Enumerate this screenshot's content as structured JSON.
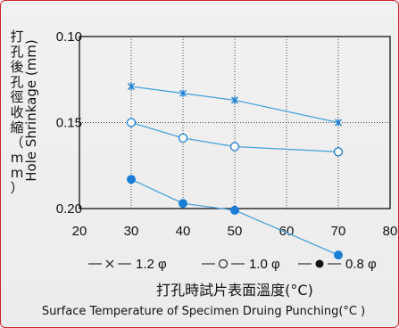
{
  "chart_data": {
    "type": "line",
    "xlabel_cn": "打孔時試片表面溫度(°C)",
    "xlabel_en": "Surface Temperature of Specimen Druing Punching(°C )",
    "ylabel_cn": "打孔後孔徑收縮（mm）",
    "ylabel_en": "Hole Shrinkage (mm)",
    "xlim": [
      20,
      80
    ],
    "ylim": [
      0.1,
      0.2
    ],
    "y_inverted": true,
    "x_ticks": [
      "20",
      "30",
      "40",
      "50",
      "60",
      "70",
      "80"
    ],
    "y_ticks": [
      "0.10",
      "0.15",
      "0.20"
    ],
    "grid": true,
    "x": [
      30,
      40,
      50,
      70
    ],
    "series": [
      {
        "name": "1.2 φ",
        "marker": "x",
        "values": [
          0.129,
          0.133,
          0.137,
          0.15
        ]
      },
      {
        "name": "1.0 φ",
        "marker": "open-circle",
        "values": [
          0.15,
          0.159,
          0.164,
          0.167
        ]
      },
      {
        "name": "0.8 φ",
        "marker": "filled-circle",
        "values": [
          0.183,
          0.197,
          0.201,
          0.227
        ]
      }
    ],
    "legend_placement": "bottom",
    "colors": {
      "line": "#4aa3dc",
      "marker_fill": "#1a7ed6",
      "axis": "#000000",
      "frame": "#d2232a"
    }
  }
}
